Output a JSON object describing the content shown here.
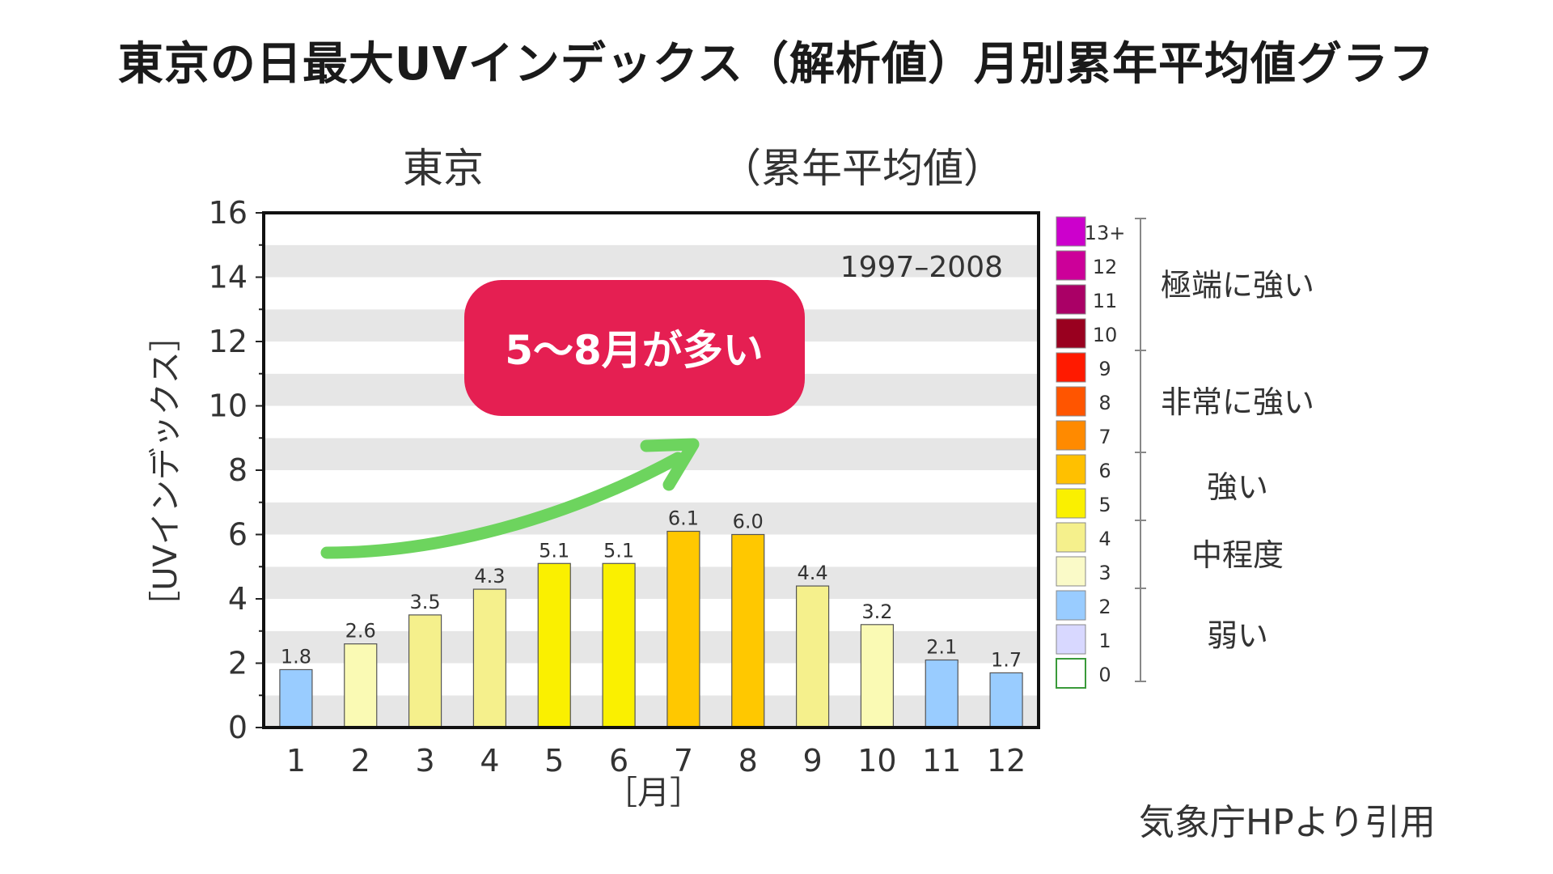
{
  "main_title": "東京の日最大UVインデックス（解析値）月別累年平均値グラフ",
  "source_note": "気象庁HPより引用",
  "callout": {
    "text": "5〜8月が多い",
    "color": "#e51f52"
  },
  "arrow_color": "#6dd45e",
  "chart_data": {
    "type": "bar",
    "subtitle_left": "東京",
    "subtitle_right": "（累年平均値）",
    "period_label": "1997–2008",
    "ylabel": "［UVインデックス］",
    "xlabel": "［月］",
    "categories": [
      "1",
      "2",
      "3",
      "4",
      "5",
      "6",
      "7",
      "8",
      "9",
      "10",
      "11",
      "12"
    ],
    "values": [
      1.8,
      2.6,
      3.5,
      4.3,
      5.1,
      5.1,
      6.1,
      6.0,
      4.4,
      3.2,
      2.1,
      1.7
    ],
    "value_labels": [
      "1.8",
      "2.6",
      "3.5",
      "4.3",
      "5.1",
      "5.1",
      "6.1",
      "6.0",
      "4.4",
      "3.2",
      "2.1",
      "1.7"
    ],
    "bar_colors": [
      "#99ccff",
      "#fafab4",
      "#f5f08c",
      "#f5f08c",
      "#faf000",
      "#faf000",
      "#ffc800",
      "#ffc800",
      "#f5f08c",
      "#fafab4",
      "#99ccff",
      "#99ccff"
    ],
    "ylim": [
      0,
      16
    ],
    "yticks": [
      "0",
      "2",
      "4",
      "6",
      "8",
      "10",
      "12",
      "14",
      "16"
    ],
    "grid": "alternating horizontal bands",
    "legend": {
      "placement": "right",
      "levels": [
        {
          "label": "13+",
          "color": "#cc00cc"
        },
        {
          "label": "12",
          "color": "#cc0099"
        },
        {
          "label": "11",
          "color": "#aa0066"
        },
        {
          "label": "10",
          "color": "#99001f"
        },
        {
          "label": "9",
          "color": "#ff1a00"
        },
        {
          "label": "8",
          "color": "#ff5500"
        },
        {
          "label": "7",
          "color": "#ff8a00"
        },
        {
          "label": "6",
          "color": "#ffc000"
        },
        {
          "label": "5",
          "color": "#faf000"
        },
        {
          "label": "4",
          "color": "#f5f08c"
        },
        {
          "label": "3",
          "color": "#fafac8"
        },
        {
          "label": "2",
          "color": "#99ccff"
        },
        {
          "label": "1",
          "color": "#d8d8ff"
        },
        {
          "label": "0",
          "color": "#ffffff"
        }
      ],
      "categories": [
        "極端に強い",
        "非常に強い",
        "強い",
        "中程度",
        "弱い"
      ]
    }
  }
}
